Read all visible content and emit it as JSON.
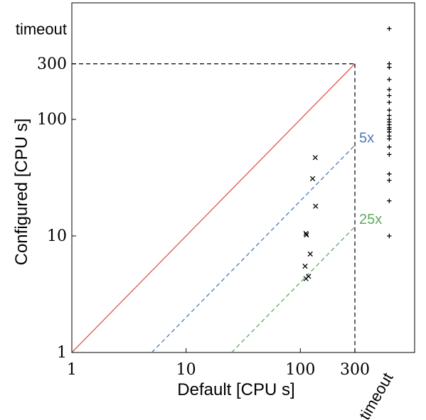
{
  "chart_data": {
    "type": "scatter",
    "xlabel": "Default [CPU s]",
    "ylabel": "Configured [CPU s]",
    "xscale": "log",
    "yscale": "log",
    "xlim": [
      1,
      1000
    ],
    "ylim": [
      1,
      1000
    ],
    "x_ticks": [
      {
        "value": 1,
        "label": "1"
      },
      {
        "value": 10,
        "label": "10"
      },
      {
        "value": 100,
        "label": "100"
      },
      {
        "value": 300,
        "label": "300"
      }
    ],
    "y_ticks": [
      {
        "value": 1,
        "label": "1"
      },
      {
        "value": 10,
        "label": "10"
      },
      {
        "value": 100,
        "label": "100"
      },
      {
        "value": 300,
        "label": "300"
      }
    ],
    "timeout_label": "timeout",
    "timeout_value": 600,
    "reference_lines": [
      {
        "factor": 1,
        "style": "solid",
        "color": "#e05555",
        "label": ""
      },
      {
        "factor": 5,
        "style": "dashed",
        "color": "#4a7bb0",
        "label": "5x"
      },
      {
        "factor": 25,
        "style": "dashed",
        "color": "#5fa85f",
        "label": "25x"
      }
    ],
    "cutoff": 300,
    "series": [
      {
        "marker": "x",
        "points": [
          [
            135,
            47
          ],
          [
            128,
            31
          ],
          [
            136,
            18
          ],
          [
            112,
            10.5
          ],
          [
            113,
            10.2
          ],
          [
            122,
            7
          ],
          [
            110,
            5.5
          ],
          [
            112,
            4.3
          ],
          [
            118,
            4.5
          ]
        ]
      },
      {
        "marker": "+",
        "points": [
          [
            600,
            600
          ],
          [
            600,
            300
          ],
          [
            600,
            280
          ],
          [
            600,
            220
          ],
          [
            600,
            180
          ],
          [
            600,
            160
          ],
          [
            600,
            140
          ],
          [
            600,
            120
          ],
          [
            600,
            108
          ],
          [
            600,
            100
          ],
          [
            600,
            95
          ],
          [
            600,
            90
          ],
          [
            600,
            85
          ],
          [
            600,
            82
          ],
          [
            600,
            78
          ],
          [
            600,
            72
          ],
          [
            600,
            68
          ],
          [
            600,
            58
          ],
          [
            600,
            50
          ],
          [
            600,
            34
          ],
          [
            600,
            30
          ],
          [
            600,
            20
          ],
          [
            600,
            10
          ]
        ]
      }
    ]
  }
}
